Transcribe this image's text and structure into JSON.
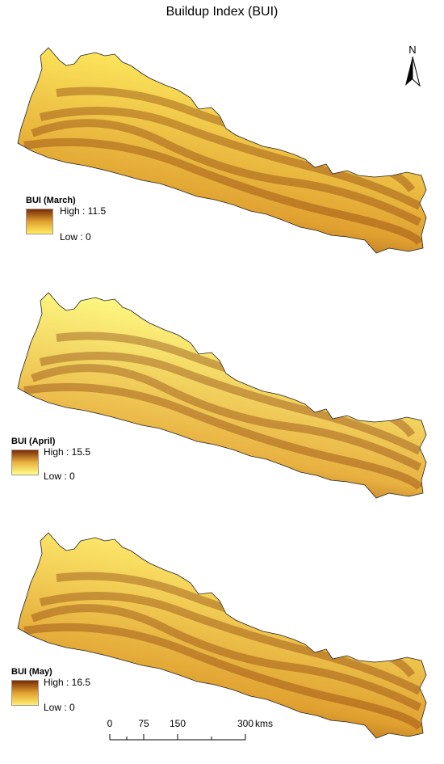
{
  "title": "Buildup Index (BUI)",
  "north_label": "N",
  "north_icon": "north-arrow-icon",
  "maps": [
    {
      "legend_title": "BUI (March)",
      "high_label": "High : 11.5",
      "low_label": "Low : 0",
      "ramp": {
        "low": "#ffec60",
        "mid": "#e0a030",
        "high": "#7a2a05"
      }
    },
    {
      "legend_title": "BUI (April)",
      "high_label": "High : 15.5",
      "low_label": "Low : 0",
      "ramp": {
        "low": "#ffff88",
        "mid": "#e8b040",
        "high": "#7a2a05"
      }
    },
    {
      "legend_title": "BUI (May)",
      "high_label": "High : 16.5",
      "low_label": "Low : 0",
      "ramp": {
        "low": "#ffee70",
        "mid": "#e0a030",
        "high": "#7a2a05"
      }
    }
  ],
  "scalebar": {
    "ticks": [
      "0",
      "75",
      "150",
      "300"
    ],
    "unit": "kms"
  }
}
